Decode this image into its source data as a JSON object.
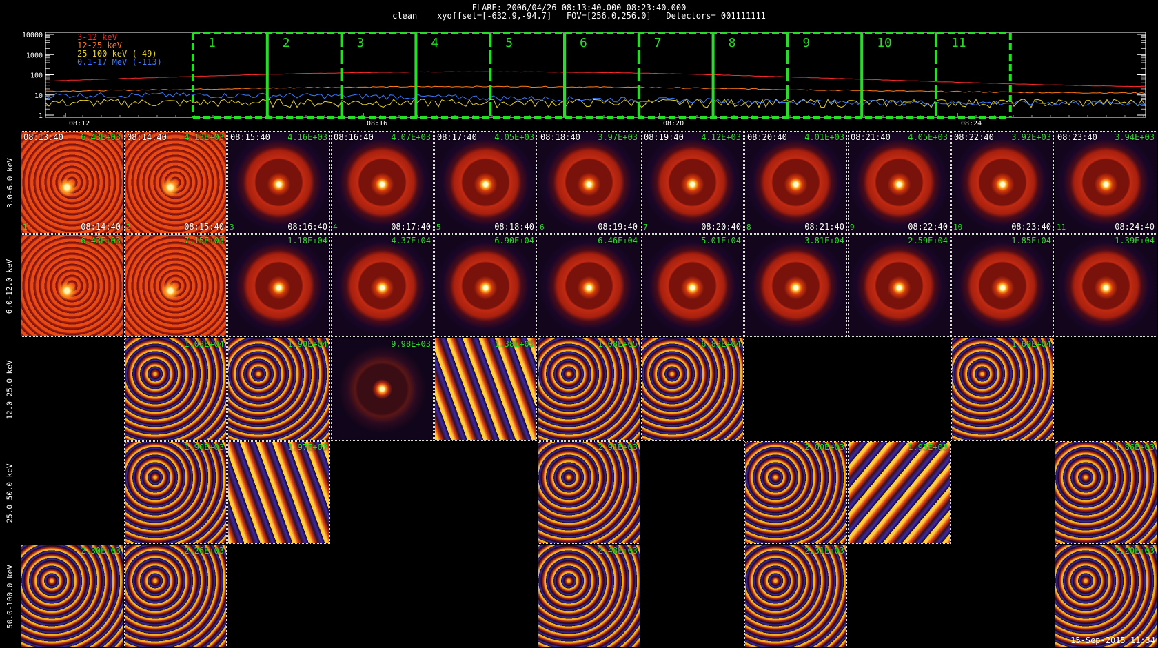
{
  "header": {
    "line1": "FLARE: 2006/04/26 08:13:40.000-08:23:40.000",
    "line2": "clean    xyoffset=[-632.9,-94.7]   FOV=[256.0,256.0]   Detectors= 001111111"
  },
  "lightcurve": {
    "ytick_labels": [
      "10000",
      "1000",
      "100",
      "10",
      "1"
    ],
    "xtick_labels": [
      "08:12",
      "08:16",
      "08:20",
      "08:24"
    ],
    "legend": [
      {
        "label": "3-12 keV",
        "color": "#ff2a2a"
      },
      {
        "label": "12-25 keV",
        "color": "#ff7a1a"
      },
      {
        "label": "25-100 keV (-49)",
        "color": "#e6d21a"
      },
      {
        "label": "0.1-17 MeV (-113)",
        "color": "#3a7bff"
      }
    ],
    "interval_labels": [
      "1",
      "2",
      "3",
      "4",
      "5",
      "6",
      "7",
      "8",
      "9",
      "10",
      "11"
    ],
    "interval_color": "#22e022"
  },
  "grid": {
    "energy_labels": [
      "3.0-6.0 keV",
      "6.0-12.0 keV",
      "12.0-25.0 keV",
      "25.0-50.0 keV",
      "50.0-100.0 keV"
    ],
    "start_times": [
      "08:13:40",
      "08:14:40",
      "08:15:40",
      "08:16:40",
      "08:17:40",
      "08:18:40",
      "08:19:40",
      "08:20:40",
      "08:21:40",
      "08:22:40",
      "08:23:40"
    ],
    "end_times": [
      "08:14:40",
      "08:15:40",
      "08:16:40",
      "08:17:40",
      "08:18:40",
      "08:19:40",
      "08:20:40",
      "08:21:40",
      "08:22:40",
      "08:23:40",
      "08:24:40"
    ],
    "rows": [
      [
        {
          "max": "6.43E+03",
          "style": "noisy"
        },
        {
          "max": "4.13E+03",
          "style": "noisy"
        },
        {
          "max": "4.16E+03",
          "style": "ring"
        },
        {
          "max": "4.07E+03",
          "style": "ring"
        },
        {
          "max": "4.05E+03",
          "style": "ring"
        },
        {
          "max": "3.97E+03",
          "style": "ring"
        },
        {
          "max": "4.12E+03",
          "style": "ring"
        },
        {
          "max": "4.01E+03",
          "style": "ring"
        },
        {
          "max": "4.05E+03",
          "style": "ring"
        },
        {
          "max": "3.92E+03",
          "style": "ring"
        },
        {
          "max": "3.94E+03",
          "style": "ring"
        }
      ],
      [
        {
          "max": "6.43E+03",
          "style": "noisy"
        },
        {
          "max": "7.15E+03",
          "style": "noisy"
        },
        {
          "max": "1.18E+04",
          "style": "ring"
        },
        {
          "max": "4.37E+04",
          "style": "ring"
        },
        {
          "max": "6.90E+04",
          "style": "ring"
        },
        {
          "max": "6.46E+04",
          "style": "ring"
        },
        {
          "max": "5.01E+04",
          "style": "ring"
        },
        {
          "max": "3.81E+04",
          "style": "ring"
        },
        {
          "max": "2.59E+04",
          "style": "ring"
        },
        {
          "max": "1.85E+04",
          "style": "ring"
        },
        {
          "max": "1.39E+04",
          "style": "ring"
        }
      ],
      [
        null,
        {
          "max": "1.03E+04",
          "style": "speckle"
        },
        {
          "max": "1.90E+04",
          "style": "speckle"
        },
        {
          "max": "9.98E+03",
          "style": "dimring"
        },
        {
          "max": "1.38E+05",
          "style": "stripes"
        },
        {
          "max": "1.08E+05",
          "style": "speckle"
        },
        {
          "max": "6.83E+04",
          "style": "speckle"
        },
        null,
        null,
        {
          "max": "1.69E+04",
          "style": "speckle"
        },
        null
      ],
      [
        null,
        {
          "max": "1.90E+03",
          "style": "speckle"
        },
        {
          "max": "1.97E+03",
          "style": "stripes"
        },
        null,
        null,
        {
          "max": "2.91E+03",
          "style": "speckle"
        },
        null,
        {
          "max": "2.00E+03",
          "style": "speckle"
        },
        {
          "max": "1.95E+03",
          "style": "stripes2"
        },
        null,
        {
          "max": "1.86E+03",
          "style": "speckle"
        }
      ],
      [
        {
          "max": "2.30E+03",
          "style": "speckle"
        },
        {
          "max": "2.26E+03",
          "style": "speckle"
        },
        null,
        null,
        null,
        {
          "max": "2.48E+03",
          "style": "speckle"
        },
        null,
        {
          "max": "2.31E+03",
          "style": "speckle"
        },
        null,
        null,
        {
          "max": "2.20E+03",
          "style": "speckle"
        }
      ]
    ]
  },
  "footer": {
    "stamp": "15-Sep-2015 11:34"
  }
}
